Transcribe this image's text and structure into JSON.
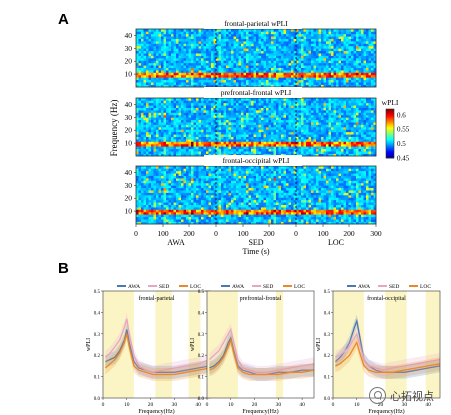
{
  "figure": {
    "panel_a_label": "A",
    "panel_b_label": "B",
    "watermark_text": "心拓视点",
    "watermark_icon": "wechat-icon"
  },
  "chart_data": [
    {
      "type": "heatmap",
      "panel": "A",
      "title": "frontal-parietal wPLI",
      "ylabel": "Frequency (Hz)",
      "xlabel": "Time (s)",
      "yticks": [
        10,
        20,
        30,
        40
      ],
      "ylim": [
        0,
        45
      ],
      "segments": [
        "AWA",
        "SED",
        "LOC"
      ],
      "xticks": [
        "0",
        "100",
        "200",
        "0",
        "100",
        "200",
        "0",
        "100",
        "200",
        "300"
      ],
      "segment_boundary_ticks": [
        0,
        300
      ],
      "band_hz": 9,
      "colorbar": {
        "label": "wPLI",
        "range": [
          0.45,
          0.62
        ],
        "ticks": [
          0.45,
          0.5,
          0.55,
          0.6
        ]
      }
    },
    {
      "type": "heatmap",
      "panel": "A",
      "title": "prefrontal-frontal wPLI",
      "yticks": [
        10,
        20,
        30,
        40
      ],
      "ylim": [
        0,
        45
      ],
      "band_hz": 9
    },
    {
      "type": "heatmap",
      "panel": "A",
      "title": "frontal-occipital wPLI",
      "yticks": [
        10,
        20,
        30,
        40
      ],
      "ylim": [
        0,
        45
      ],
      "band_hz": 9
    },
    {
      "type": "line",
      "panel": "B",
      "title": "frontal-parietal",
      "xlabel": "Frequency(Hz)",
      "ylabel": "wPLI",
      "xlim": [
        0,
        45
      ],
      "ylim": [
        0,
        0.5
      ],
      "xticks": [
        0,
        10,
        20,
        30,
        40
      ],
      "yticks": [
        0,
        0.1,
        0.2,
        0.3,
        0.4,
        0.5
      ],
      "legend": "top",
      "shaded_bands": [
        [
          0,
          13
        ],
        [
          22,
          29
        ],
        [
          36,
          41
        ]
      ],
      "x": [
        1,
        3,
        5,
        7,
        9,
        10,
        11,
        13,
        15,
        18,
        21,
        25,
        30,
        35,
        40,
        45
      ],
      "series": [
        {
          "name": "AWA",
          "color": "#4a78b5",
          "values": [
            0.17,
            0.18,
            0.19,
            0.22,
            0.27,
            0.32,
            0.26,
            0.17,
            0.14,
            0.13,
            0.12,
            0.12,
            0.12,
            0.13,
            0.14,
            0.15
          ]
        },
        {
          "name": "SED",
          "color": "#e8a6c4",
          "values": [
            0.19,
            0.21,
            0.24,
            0.27,
            0.33,
            0.37,
            0.3,
            0.2,
            0.15,
            0.13,
            0.12,
            0.13,
            0.14,
            0.15,
            0.16,
            0.18
          ]
        },
        {
          "name": "LOC",
          "color": "#e8892b",
          "values": [
            0.14,
            0.16,
            0.18,
            0.21,
            0.26,
            0.3,
            0.24,
            0.15,
            0.13,
            0.12,
            0.11,
            0.11,
            0.11,
            0.12,
            0.13,
            0.14
          ]
        }
      ]
    },
    {
      "type": "line",
      "panel": "B",
      "title": "prefrontal-frontal",
      "xlabel": "Frequency(Hz)",
      "ylabel": "wPLI",
      "xlim": [
        0,
        45
      ],
      "ylim": [
        0,
        0.5
      ],
      "xticks": [
        0,
        10,
        20,
        30,
        40
      ],
      "yticks": [
        0,
        0.1,
        0.2,
        0.3,
        0.4,
        0.5
      ],
      "legend": "top",
      "shaded_bands": [
        [
          0,
          13
        ],
        [
          29,
          32
        ]
      ],
      "x": [
        1,
        3,
        5,
        7,
        9,
        10,
        11,
        13,
        15,
        18,
        21,
        25,
        30,
        35,
        40,
        45
      ],
      "series": [
        {
          "name": "AWA",
          "color": "#4a78b5",
          "values": [
            0.14,
            0.15,
            0.17,
            0.2,
            0.26,
            0.28,
            0.23,
            0.15,
            0.13,
            0.12,
            0.11,
            0.11,
            0.12,
            0.12,
            0.13,
            0.13
          ]
        },
        {
          "name": "SED",
          "color": "#e8a6c4",
          "values": [
            0.18,
            0.2,
            0.22,
            0.26,
            0.3,
            0.32,
            0.27,
            0.18,
            0.14,
            0.13,
            0.12,
            0.12,
            0.13,
            0.14,
            0.15,
            0.16
          ]
        },
        {
          "name": "LOC",
          "color": "#e8892b",
          "values": [
            0.13,
            0.14,
            0.16,
            0.19,
            0.24,
            0.27,
            0.22,
            0.14,
            0.12,
            0.11,
            0.11,
            0.11,
            0.11,
            0.12,
            0.12,
            0.13
          ]
        }
      ]
    },
    {
      "type": "line",
      "panel": "B",
      "title": "frontal-occipital",
      "xlabel": "Frequency(Hz)",
      "ylabel": "wPLI",
      "xlim": [
        0,
        45
      ],
      "ylim": [
        0,
        0.5
      ],
      "xticks": [
        0,
        10,
        20,
        30,
        40
      ],
      "yticks": [
        0,
        0.1,
        0.2,
        0.3,
        0.4,
        0.5
      ],
      "legend": "top",
      "shaded_bands": [
        [
          0,
          13
        ],
        [
          22,
          31
        ],
        [
          39,
          45
        ]
      ],
      "x": [
        1,
        3,
        5,
        7,
        9,
        10,
        11,
        13,
        15,
        18,
        21,
        25,
        30,
        35,
        40,
        45
      ],
      "series": [
        {
          "name": "AWA",
          "color": "#4a78b5",
          "values": [
            0.17,
            0.19,
            0.22,
            0.26,
            0.33,
            0.36,
            0.3,
            0.18,
            0.15,
            0.13,
            0.12,
            0.12,
            0.12,
            0.13,
            0.14,
            0.15
          ]
        },
        {
          "name": "SED",
          "color": "#e8a6c4",
          "values": [
            0.19,
            0.2,
            0.22,
            0.24,
            0.28,
            0.3,
            0.26,
            0.18,
            0.15,
            0.14,
            0.13,
            0.14,
            0.15,
            0.16,
            0.17,
            0.18
          ]
        },
        {
          "name": "LOC",
          "color": "#e8892b",
          "values": [
            0.15,
            0.16,
            0.18,
            0.2,
            0.24,
            0.26,
            0.22,
            0.15,
            0.13,
            0.12,
            0.12,
            0.12,
            0.13,
            0.14,
            0.15,
            0.16
          ]
        }
      ]
    }
  ]
}
